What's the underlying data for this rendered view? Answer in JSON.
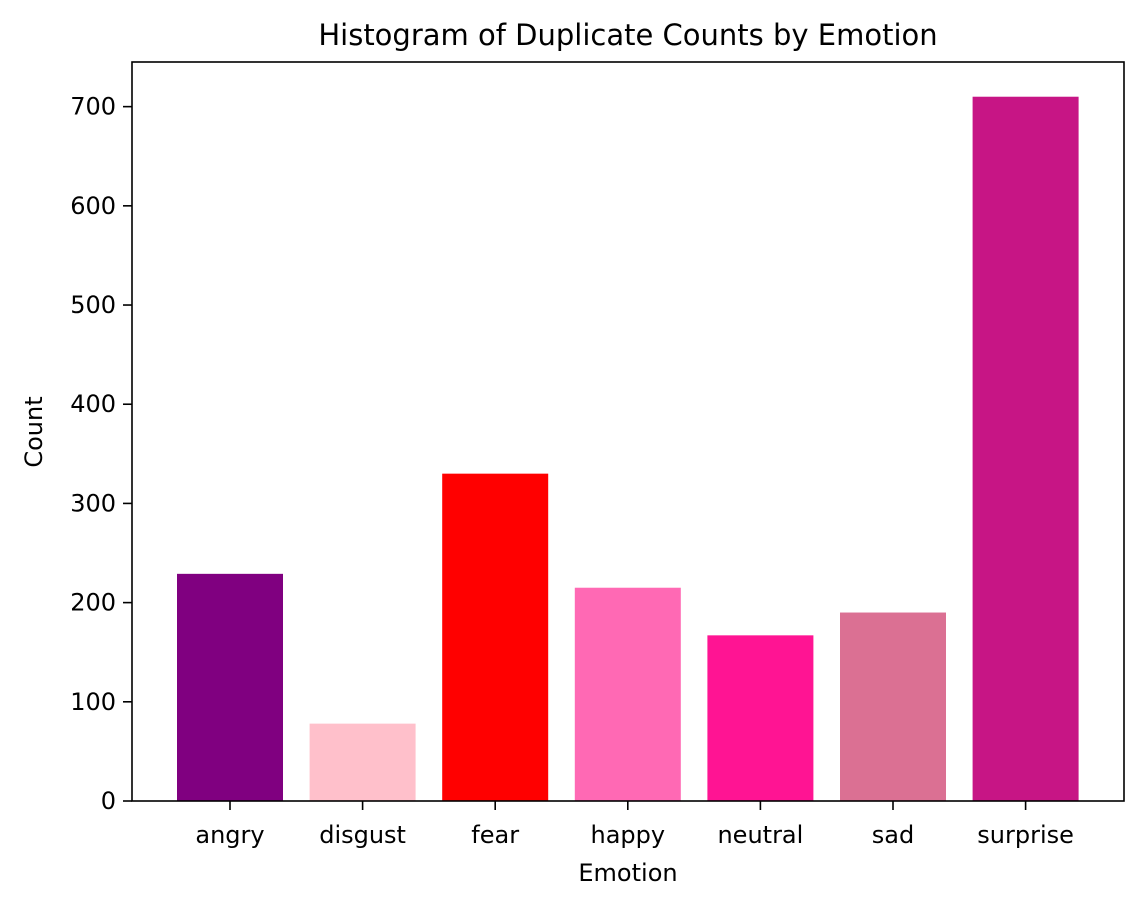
{
  "chart_data": {
    "type": "bar",
    "title": "Histogram of Duplicate Counts by Emotion",
    "xlabel": "Emotion",
    "ylabel": "Count",
    "categories": [
      "angry",
      "disgust",
      "fear",
      "happy",
      "neutral",
      "sad",
      "surprise"
    ],
    "values": [
      229,
      78,
      330,
      215,
      167,
      190,
      710
    ],
    "colors": [
      "#800080",
      "#ffc0cb",
      "#ff0000",
      "#ff69b4",
      "#ff1493",
      "#db7093",
      "#c71585"
    ],
    "ylim": [
      0,
      745
    ],
    "yticks": [
      0,
      100,
      200,
      300,
      400,
      500,
      600,
      700
    ],
    "grid": false,
    "legend": "none"
  }
}
